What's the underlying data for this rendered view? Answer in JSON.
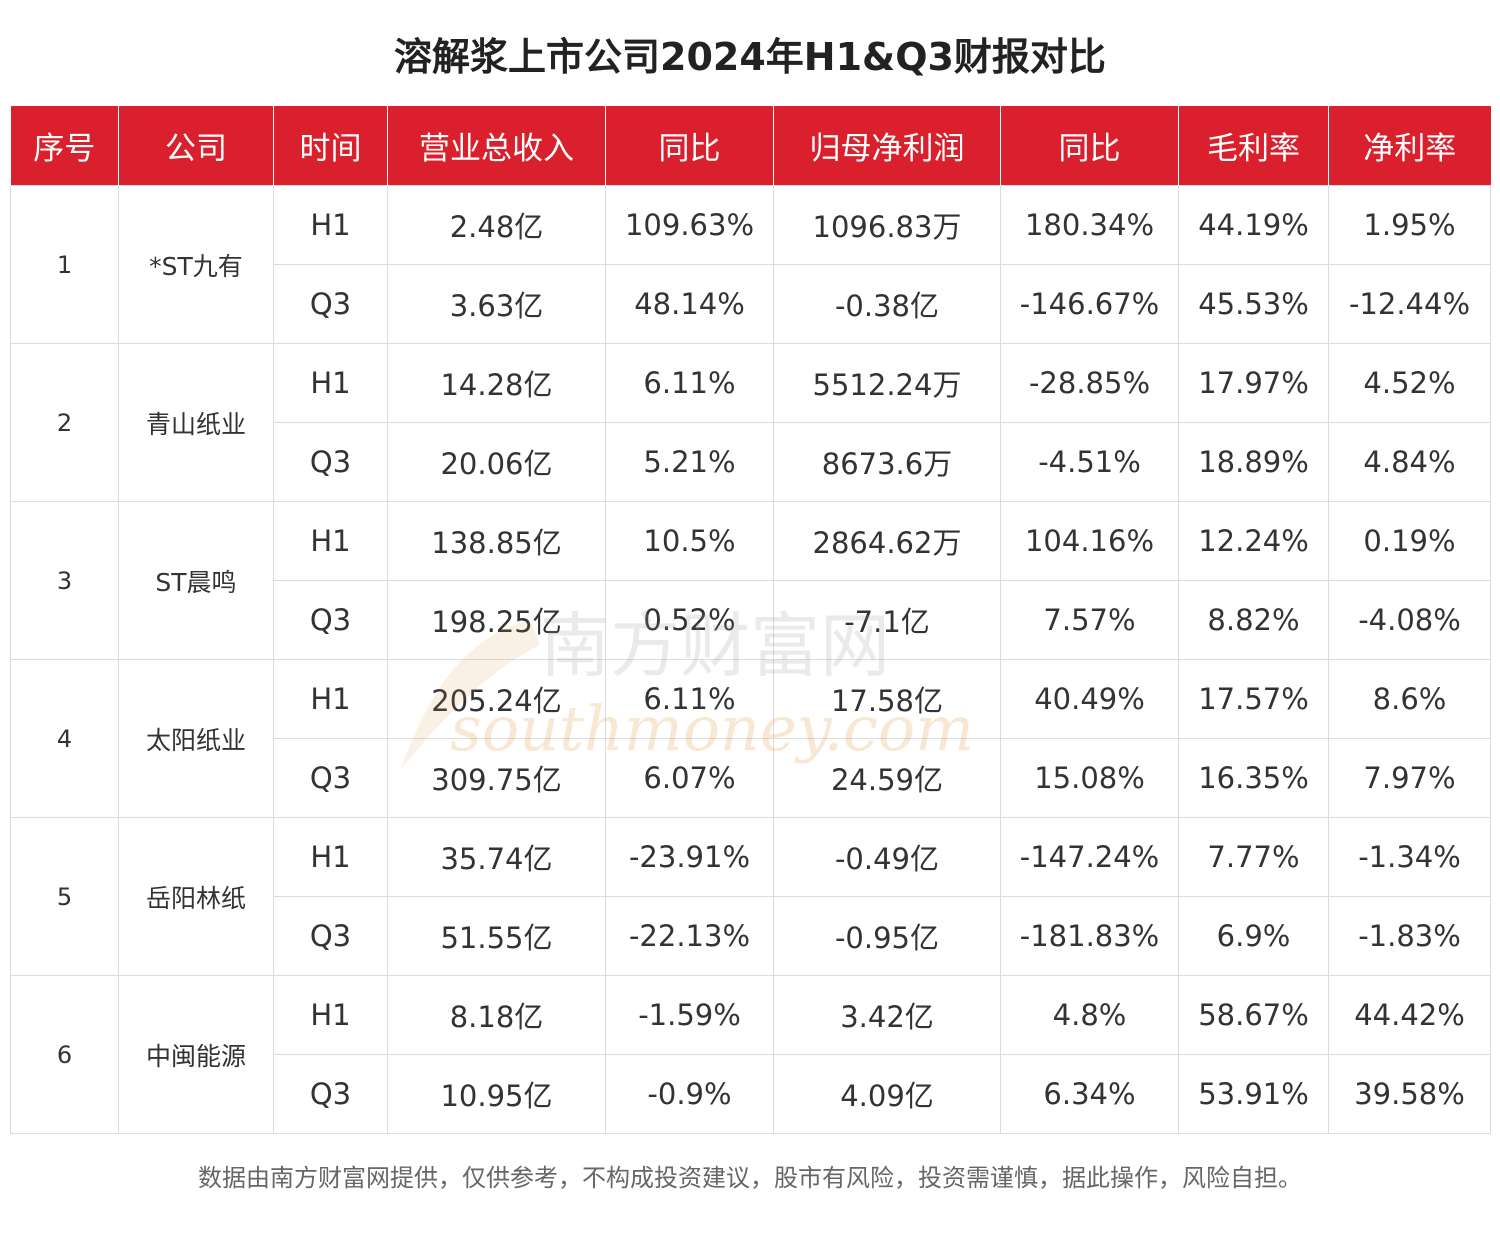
{
  "title": "溶解浆上市公司2024年H1&Q3财报对比",
  "table": {
    "headers": [
      "序号",
      "公司",
      "时间",
      "营业总收入",
      "同比",
      "归母净利润",
      "同比",
      "毛利率",
      "净利率"
    ],
    "groups": [
      {
        "index": "1",
        "company": "*ST九有",
        "rows": [
          {
            "period": "H1",
            "revenue": "2.48亿",
            "revenue_yoy": "109.63%",
            "net_profit": "1096.83万",
            "profit_yoy": "180.34%",
            "gross_margin": "44.19%",
            "net_margin": "1.95%"
          },
          {
            "period": "Q3",
            "revenue": "3.63亿",
            "revenue_yoy": "48.14%",
            "net_profit": "-0.38亿",
            "profit_yoy": "-146.67%",
            "gross_margin": "45.53%",
            "net_margin": "-12.44%"
          }
        ]
      },
      {
        "index": "2",
        "company": "青山纸业",
        "rows": [
          {
            "period": "H1",
            "revenue": "14.28亿",
            "revenue_yoy": "6.11%",
            "net_profit": "5512.24万",
            "profit_yoy": "-28.85%",
            "gross_margin": "17.97%",
            "net_margin": "4.52%"
          },
          {
            "period": "Q3",
            "revenue": "20.06亿",
            "revenue_yoy": "5.21%",
            "net_profit": "8673.6万",
            "profit_yoy": "-4.51%",
            "gross_margin": "18.89%",
            "net_margin": "4.84%"
          }
        ]
      },
      {
        "index": "3",
        "company": "ST晨鸣",
        "rows": [
          {
            "period": "H1",
            "revenue": "138.85亿",
            "revenue_yoy": "10.5%",
            "net_profit": "2864.62万",
            "profit_yoy": "104.16%",
            "gross_margin": "12.24%",
            "net_margin": "0.19%"
          },
          {
            "period": "Q3",
            "revenue": "198.25亿",
            "revenue_yoy": "0.52%",
            "net_profit": "-7.1亿",
            "profit_yoy": "7.57%",
            "gross_margin": "8.82%",
            "net_margin": "-4.08%"
          }
        ]
      },
      {
        "index": "4",
        "company": "太阳纸业",
        "rows": [
          {
            "period": "H1",
            "revenue": "205.24亿",
            "revenue_yoy": "6.11%",
            "net_profit": "17.58亿",
            "profit_yoy": "40.49%",
            "gross_margin": "17.57%",
            "net_margin": "8.6%"
          },
          {
            "period": "Q3",
            "revenue": "309.75亿",
            "revenue_yoy": "6.07%",
            "net_profit": "24.59亿",
            "profit_yoy": "15.08%",
            "gross_margin": "16.35%",
            "net_margin": "7.97%"
          }
        ]
      },
      {
        "index": "5",
        "company": "岳阳林纸",
        "rows": [
          {
            "period": "H1",
            "revenue": "35.74亿",
            "revenue_yoy": "-23.91%",
            "net_profit": "-0.49亿",
            "profit_yoy": "-147.24%",
            "gross_margin": "7.77%",
            "net_margin": "-1.34%"
          },
          {
            "period": "Q3",
            "revenue": "51.55亿",
            "revenue_yoy": "-22.13%",
            "net_profit": "-0.95亿",
            "profit_yoy": "-181.83%",
            "gross_margin": "6.9%",
            "net_margin": "-1.83%"
          }
        ]
      },
      {
        "index": "6",
        "company": "中闽能源",
        "rows": [
          {
            "period": "H1",
            "revenue": "8.18亿",
            "revenue_yoy": "-1.59%",
            "net_profit": "3.42亿",
            "profit_yoy": "4.8%",
            "gross_margin": "58.67%",
            "net_margin": "44.42%"
          },
          {
            "period": "Q3",
            "revenue": "10.95亿",
            "revenue_yoy": "-0.9%",
            "net_profit": "4.09亿",
            "profit_yoy": "6.34%",
            "gross_margin": "53.91%",
            "net_margin": "39.58%"
          }
        ]
      }
    ]
  },
  "watermark": {
    "cn": "南方财富网",
    "en": "southmoney.com",
    "color": "#e08a2a"
  },
  "footnote": "数据由南方财富网提供，仅供参考，不构成投资建议，股市有风险，投资需谨慎，据此操作，风险自担。",
  "colors": {
    "header_bg": "#d9202c",
    "header_text": "#ffffff",
    "grid_line": "#dcdcdc"
  }
}
